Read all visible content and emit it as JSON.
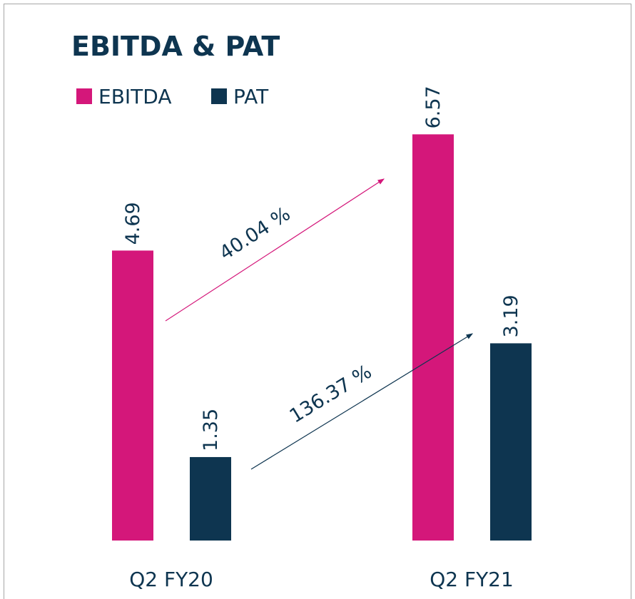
{
  "chart_data": {
    "type": "bar",
    "title": "EBITDA & PAT",
    "categories": [
      "Q2 FY20",
      "Q2 FY21"
    ],
    "series": [
      {
        "name": "EBITDA",
        "color": "#d4177a",
        "values": [
          4.69,
          6.57
        ]
      },
      {
        "name": "PAT",
        "color": "#0e3550",
        "values": [
          1.35,
          3.19
        ]
      }
    ],
    "annotations": [
      {
        "text": "40.04 %",
        "color": "#d4177a"
      },
      {
        "text": "136.37 %",
        "color": "#0e3550"
      }
    ]
  }
}
